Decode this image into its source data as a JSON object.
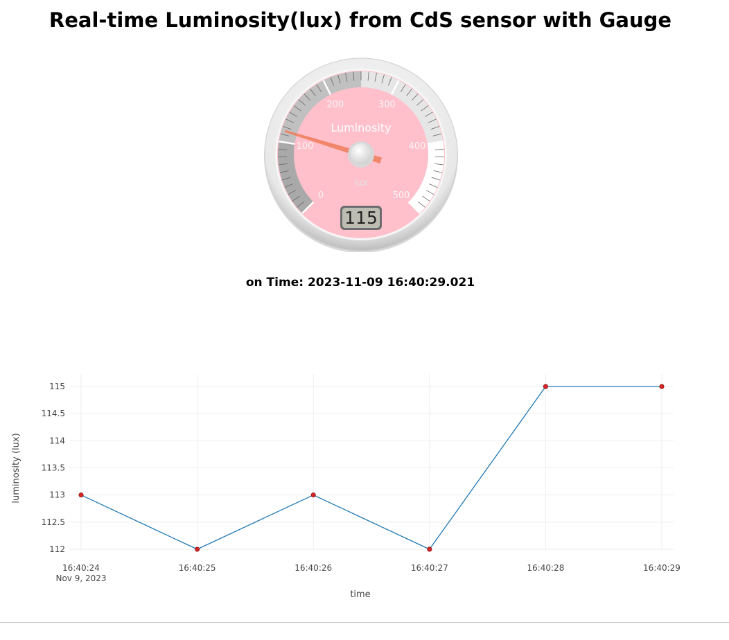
{
  "title": "Real-time Luminosity(lux) from CdS sensor with Gauge",
  "gauge": {
    "label": "Luminosity",
    "units": "lux",
    "value": 115,
    "value_display": "115",
    "min": 0,
    "max": 500,
    "tick_labels": [
      "0",
      "100",
      "200",
      "300",
      "400",
      "500"
    ],
    "colors": {
      "plate": "#ffc0cb",
      "needle": "#f08060",
      "band_dark": "#a9a9a9",
      "band_mid": "#c0c0c0",
      "band_light": "#e6e6e6",
      "band_white": "#ffffff"
    }
  },
  "time_label": "on Time:",
  "time_value": "2023-11-09 16:40:29.021",
  "chart_data": {
    "type": "line",
    "x": [
      "16:40:24",
      "16:40:25",
      "16:40:26",
      "16:40:27",
      "16:40:28",
      "16:40:29"
    ],
    "x_sublabel_first": "Nov 9, 2023",
    "series": [
      {
        "values": [
          113,
          112,
          113,
          112,
          115,
          115
        ],
        "color": "#1f77b4",
        "marker_color": "#d62728"
      }
    ],
    "xlabel": "time",
    "ylabel": "luminosity (lux)",
    "ylim": [
      112,
      115
    ],
    "yticks": [
      112,
      112.5,
      113,
      113.5,
      114,
      114.5,
      115
    ],
    "grid": true
  }
}
